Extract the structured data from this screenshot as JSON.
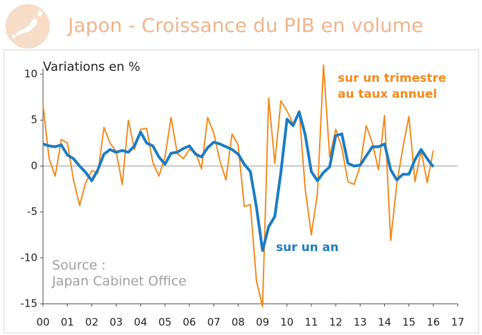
{
  "chart_data": {
    "type": "line",
    "title": "Japon - Croissance du PIB en volume",
    "y_label": "Variations en %",
    "source": [
      "Source :",
      "Japan Cabinet Office"
    ],
    "x": [
      2000,
      2000.25,
      2000.5,
      2000.75,
      2001,
      2001.25,
      2001.5,
      2001.75,
      2002,
      2002.25,
      2002.5,
      2002.75,
      2003,
      2003.25,
      2003.5,
      2003.75,
      2004,
      2004.25,
      2004.5,
      2004.75,
      2005,
      2005.25,
      2005.5,
      2005.75,
      2006,
      2006.25,
      2006.5,
      2006.75,
      2007,
      2007.25,
      2007.5,
      2007.75,
      2008,
      2008.25,
      2008.5,
      2008.75,
      2009,
      2009.25,
      2009.5,
      2009.75,
      2010,
      2010.25,
      2010.5,
      2010.75,
      2011,
      2011.25,
      2011.5,
      2011.75,
      2012,
      2012.25,
      2012.5,
      2012.75,
      2013,
      2013.25,
      2013.5,
      2013.75,
      2014,
      2014.25,
      2014.5,
      2014.75,
      2015,
      2015.25,
      2015.5,
      2015.75,
      2016
    ],
    "series": [
      {
        "name": [
          "sur un trimestre",
          "au taux annuel"
        ],
        "color": "#f28a1c",
        "width": 2,
        "values": [
          6.7,
          0.8,
          -1.1,
          2.9,
          2.5,
          -1.5,
          -4.3,
          -1.8,
          -0.5,
          -0.8,
          4.2,
          2.5,
          1.6,
          -2.0,
          5.0,
          1.8,
          4.0,
          4.1,
          0.4,
          -1.1,
          1.0,
          5.3,
          1.4,
          0.8,
          1.8,
          1.5,
          -0.3,
          5.3,
          3.6,
          0.6,
          -1.5,
          3.5,
          2.3,
          -4.4,
          -4.2,
          -12.5,
          -15.3,
          7.4,
          0.3,
          7.1,
          6.0,
          4.6,
          6.0,
          -2.5,
          -7.5,
          -3.0,
          11.0,
          1.0,
          4.0,
          2.0,
          -1.7,
          -2.0,
          0.0,
          4.4,
          2.5,
          -0.4,
          5.5,
          -8.1,
          -2.0,
          2.0,
          5.4,
          -1.7,
          1.7,
          -1.8,
          1.7
        ]
      },
      {
        "name": [
          "sur un an"
        ],
        "color": "#1b7cc3",
        "width": 4,
        "values": [
          2.4,
          2.2,
          2.1,
          2.3,
          1.2,
          0.8,
          0.0,
          -0.7,
          -1.6,
          -0.4,
          1.3,
          1.8,
          1.5,
          1.7,
          1.5,
          2.2,
          3.7,
          2.5,
          2.2,
          1.0,
          0.2,
          1.4,
          1.5,
          1.9,
          2.2,
          1.3,
          1.0,
          2.0,
          2.6,
          2.4,
          2.1,
          1.8,
          1.3,
          0.2,
          -0.6,
          -4.5,
          -9.2,
          -6.6,
          -5.5,
          -0.7,
          5.1,
          4.4,
          5.9,
          3.4,
          -0.6,
          -1.6,
          -0.7,
          -0.1,
          3.3,
          3.5,
          0.3,
          0.0,
          0.1,
          1.1,
          2.1,
          2.1,
          2.4,
          -0.4,
          -1.5,
          -0.9,
          -0.9,
          0.7,
          1.8,
          0.8,
          -0.1
        ]
      }
    ],
    "xlim": [
      2000,
      2017
    ],
    "xticks": [
      {
        "value": 2000,
        "label": "00"
      },
      {
        "value": 2001,
        "label": "01"
      },
      {
        "value": 2002,
        "label": "02"
      },
      {
        "value": 2003,
        "label": "03"
      },
      {
        "value": 2004,
        "label": "04"
      },
      {
        "value": 2005,
        "label": "05"
      },
      {
        "value": 2006,
        "label": "06"
      },
      {
        "value": 2007,
        "label": "07"
      },
      {
        "value": 2008,
        "label": "08"
      },
      {
        "value": 2009,
        "label": "09"
      },
      {
        "value": 2010,
        "label": "10"
      },
      {
        "value": 2011,
        "label": "11"
      },
      {
        "value": 2012,
        "label": "12"
      },
      {
        "value": 2013,
        "label": "13"
      },
      {
        "value": 2014,
        "label": "14"
      },
      {
        "value": 2015,
        "label": "15"
      },
      {
        "value": 2016,
        "label": "16"
      },
      {
        "value": 2017,
        "label": "17"
      }
    ],
    "ylim": [
      -15,
      10
    ],
    "yticks": [
      -15,
      -10,
      -5,
      0,
      5,
      10
    ]
  }
}
